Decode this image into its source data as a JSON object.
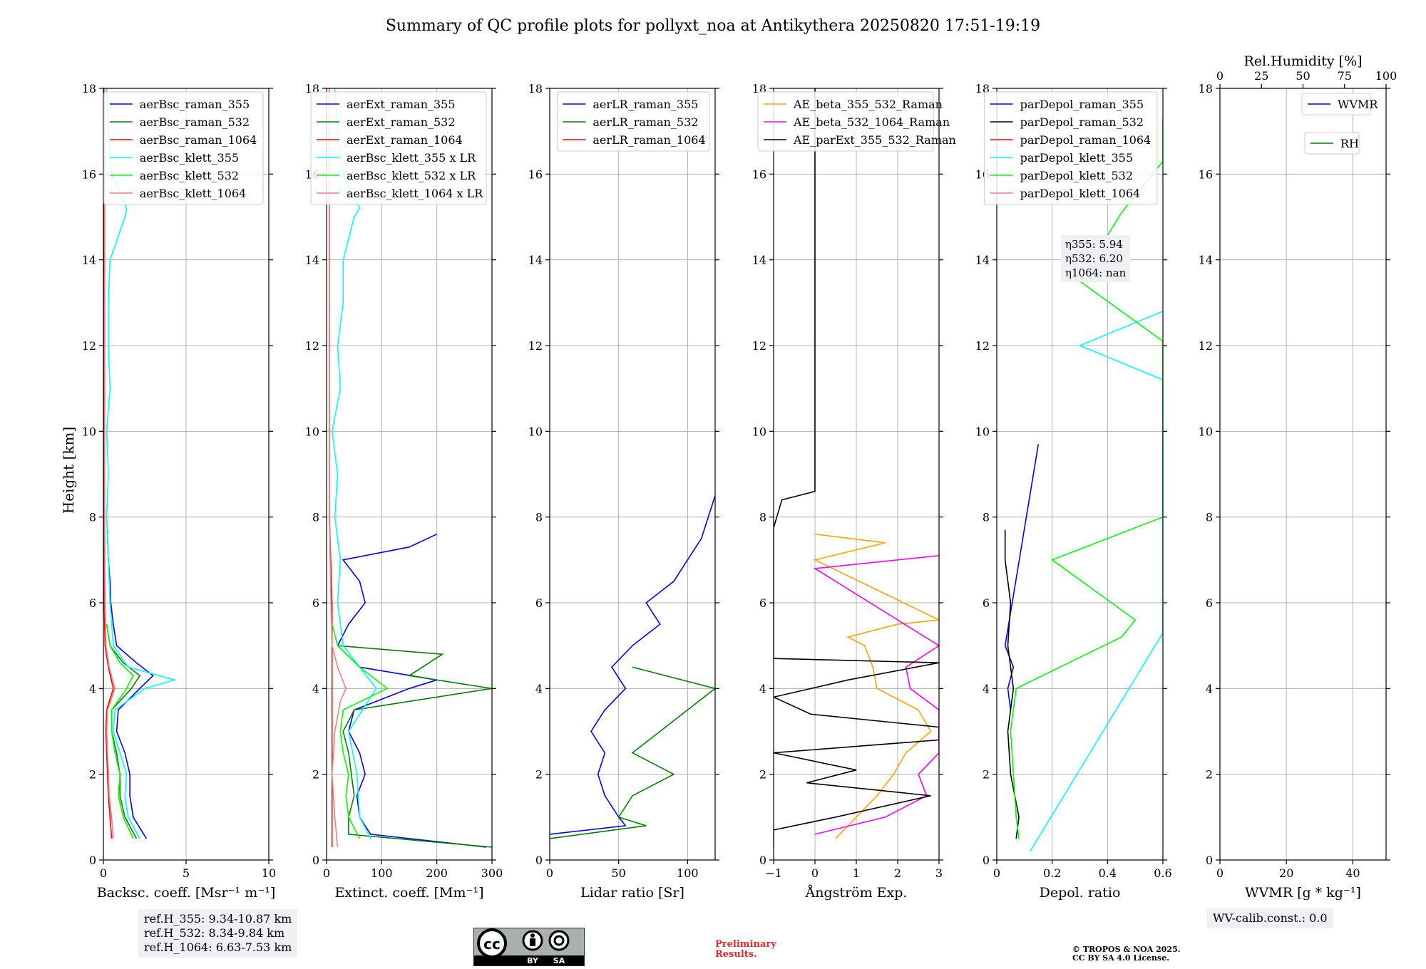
{
  "title": "Summary of QC profile plots for pollyxt_noa at Antikythera 20250820 17:51-19:19",
  "ylabel": "Height [km]",
  "chart_data": [
    {
      "type": "line",
      "xlabel": "Backsc. coeff. [Msr⁻¹ m⁻¹]",
      "xlim": [
        0,
        10
      ],
      "xticks": [
        0,
        5,
        10
      ],
      "ylim": [
        0,
        18
      ],
      "yticks": [
        0,
        2,
        4,
        6,
        8,
        10,
        12,
        14,
        16,
        18
      ],
      "legend_position": "top-right",
      "series": [
        {
          "name": "aerBsc_raman_355",
          "color": "#0000ff",
          "h": [
            0.5,
            1.0,
            1.5,
            2.0,
            2.5,
            3.0,
            3.5,
            4.0,
            4.3,
            4.6,
            5.0,
            5.5,
            6.0,
            6.5,
            7.0,
            7.5,
            7.7
          ],
          "v": [
            2.6,
            1.8,
            1.6,
            1.6,
            1.3,
            0.8,
            0.9,
            2.2,
            3.0,
            2.0,
            0.8,
            0.6,
            0.45,
            0.4,
            0.3,
            0.25,
            0.25
          ]
        },
        {
          "name": "aerBsc_raman_532",
          "color": "#008000",
          "h": [
            0.5,
            1.0,
            1.5,
            2.0,
            2.5,
            3.0,
            3.5,
            4.0,
            4.3,
            4.6,
            5.0,
            5.5
          ],
          "v": [
            2.0,
            1.3,
            1.0,
            1.0,
            0.8,
            0.5,
            0.5,
            1.7,
            2.2,
            1.2,
            0.4,
            0.2
          ]
        },
        {
          "name": "aerBsc_raman_1064",
          "color": "#ff0000",
          "h": [
            0.5,
            1.0,
            1.5,
            2.0,
            2.5,
            3.0,
            3.5,
            4.0,
            4.5,
            5.0,
            6.0,
            8.0,
            12.0,
            16.0,
            18.0
          ],
          "v": [
            0.5,
            0.4,
            0.3,
            0.25,
            0.2,
            0.15,
            0.2,
            0.6,
            0.3,
            0.1,
            0.05,
            0.05,
            0.05,
            0.05,
            0.05
          ]
        },
        {
          "name": "aerBsc_klett_355",
          "color": "#00ffff",
          "h": [
            0.5,
            1.0,
            1.5,
            2.0,
            2.5,
            3.0,
            3.5,
            4.0,
            4.2,
            4.5,
            5.0,
            6.0,
            7.0,
            8.0,
            9.0,
            10.0,
            11.0,
            12.0,
            13.0,
            14.0,
            15.0,
            15.2,
            16.0,
            17.0,
            18.0
          ],
          "v": [
            2.2,
            1.5,
            1.3,
            1.4,
            1.0,
            0.6,
            0.7,
            2.5,
            4.3,
            1.5,
            0.6,
            0.4,
            0.3,
            0.2,
            0.3,
            0.2,
            0.4,
            0.3,
            0.3,
            0.4,
            1.3,
            1.4,
            0.5,
            0.3,
            0.2
          ]
        },
        {
          "name": "aerBsc_klett_532",
          "color": "#00ff00",
          "h": [
            0.5,
            1.0,
            1.5,
            2.0,
            2.5,
            3.0,
            3.5,
            4.0,
            4.3,
            4.6,
            5.0,
            5.5
          ],
          "v": [
            1.8,
            1.2,
            0.9,
            1.0,
            0.7,
            0.5,
            0.5,
            1.4,
            1.8,
            1.0,
            0.4,
            0.2
          ]
        },
        {
          "name": "aerBsc_klett_1064",
          "color": "#f08080",
          "h": [
            0.5,
            1.0,
            1.5,
            2.0,
            2.5,
            3.0,
            3.5,
            4.0,
            4.5,
            5.0,
            6.0,
            8.0,
            12.0,
            16.0,
            18.0
          ],
          "v": [
            0.6,
            0.5,
            0.35,
            0.3,
            0.25,
            0.2,
            0.25,
            0.7,
            0.35,
            0.15,
            0.1,
            0.08,
            0.08,
            0.08,
            0.08
          ]
        }
      ],
      "annotations": [
        "ref.H_355: 9.34-10.87 km",
        "ref.H_532: 8.34-9.84 km",
        "ref.H_1064: 6.63-7.53 km"
      ]
    },
    {
      "type": "line",
      "xlabel": "Extinct. coeff. [Mm⁻¹]",
      "xlim": [
        0,
        300
      ],
      "xticks": [
        0,
        100,
        200,
        300
      ],
      "ylim": [
        0,
        18
      ],
      "yticks": [
        0,
        2,
        4,
        6,
        8,
        10,
        12,
        14,
        16,
        18
      ],
      "legend_position": "top-right",
      "series": [
        {
          "name": "aerExt_raman_355",
          "color": "#0000ff",
          "h": [
            0.3,
            0.6,
            0.8,
            1.0,
            1.5,
            2.0,
            2.5,
            3.0,
            3.5,
            4.0,
            4.2,
            4.5,
            5.0,
            5.5,
            6.0,
            6.5,
            7.0,
            7.3,
            7.6
          ],
          "v": [
            290,
            80,
            70,
            60,
            55,
            70,
            60,
            40,
            50,
            150,
            200,
            60,
            20,
            40,
            70,
            60,
            30,
            150,
            200
          ]
        },
        {
          "name": "aerExt_raman_532",
          "color": "#008000",
          "h": [
            0.3,
            0.6,
            1.0,
            1.5,
            2.0,
            2.5,
            3.0,
            3.5,
            4.0,
            4.3,
            4.8,
            5.0
          ],
          "v": [
            300,
            40,
            40,
            50,
            45,
            40,
            30,
            50,
            300,
            150,
            210,
            20
          ]
        },
        {
          "name": "aerExt_raman_1064",
          "color": "#ff0000",
          "h": [
            0.3,
            1.0,
            2.0,
            3.0,
            4.0,
            5.0,
            6.0,
            8.0,
            18.0
          ],
          "v": [
            10,
            10,
            10,
            10,
            10,
            10,
            10,
            5,
            5
          ]
        },
        {
          "name": "aerBsc_klett_355 x LR",
          "color": "#00ffff",
          "h": [
            0.5,
            1.0,
            2.0,
            3.0,
            4.0,
            5.0,
            6.0,
            7.0,
            8.0,
            9.0,
            10.0,
            11.0,
            12.0,
            13.0,
            14.0,
            15.0,
            15.2,
            16.0,
            17.0,
            18.0
          ],
          "v": [
            80,
            60,
            55,
            40,
            90,
            30,
            20,
            25,
            15,
            20,
            10,
            25,
            20,
            30,
            30,
            50,
            60,
            30,
            20,
            15
          ]
        },
        {
          "name": "aerBsc_klett_532 x LR",
          "color": "#00ff00",
          "h": [
            0.5,
            1.0,
            1.5,
            2.0,
            2.5,
            3.0,
            3.5,
            4.0,
            4.5,
            5.0,
            5.5
          ],
          "v": [
            60,
            40,
            35,
            40,
            30,
            25,
            30,
            110,
            60,
            20,
            10
          ]
        },
        {
          "name": "aerBsc_klett_1064 x LR",
          "color": "#f08080",
          "h": [
            0.3,
            1.0,
            2.0,
            3.0,
            3.7,
            4.0,
            4.5,
            5.0,
            6.0,
            8.0,
            18.0
          ],
          "v": [
            20,
            15,
            10,
            15,
            25,
            35,
            20,
            10,
            8,
            5,
            5
          ]
        }
      ]
    },
    {
      "type": "line",
      "xlabel": "Lidar ratio [Sr]",
      "xlim": [
        0,
        120
      ],
      "xticks": [
        0,
        50,
        100
      ],
      "ylim": [
        0,
        18
      ],
      "yticks": [
        0,
        2,
        4,
        6,
        8,
        10,
        12,
        14,
        16,
        18
      ],
      "legend_position": "top-right",
      "series": [
        {
          "name": "aerLR_raman_355",
          "color": "#0000ff",
          "h": [
            0.6,
            0.8,
            1.0,
            1.5,
            2.0,
            2.5,
            3.0,
            3.5,
            4.0,
            4.5,
            5.0,
            5.5,
            6.0,
            6.5,
            7.0,
            7.5,
            8.5
          ],
          "v": [
            0,
            55,
            50,
            40,
            35,
            40,
            30,
            40,
            55,
            45,
            60,
            80,
            70,
            90,
            100,
            110,
            120
          ]
        },
        {
          "name": "aerLR_raman_532",
          "color": "#008000",
          "h": [
            0.5,
            0.8,
            1.0,
            1.5,
            2.0,
            2.5,
            3.0,
            3.5,
            4.0,
            4.5
          ],
          "v": [
            0,
            70,
            50,
            60,
            90,
            60,
            80,
            100,
            120,
            60
          ]
        },
        {
          "name": "aerLR_raman_1064",
          "color": "#ff0000",
          "h": [],
          "v": []
        }
      ]
    },
    {
      "type": "line",
      "xlabel": "Ångström Exp.",
      "xlim": [
        -1,
        3
      ],
      "xticks": [
        -1,
        0,
        1,
        2,
        3
      ],
      "ylim": [
        0,
        18
      ],
      "yticks": [
        0,
        2,
        4,
        6,
        8,
        10,
        12,
        14,
        16,
        18
      ],
      "legend_position": "top-right",
      "series": [
        {
          "name": "AE_beta_355_532_Raman",
          "color": "#ffa500",
          "h": [
            0.5,
            1.0,
            1.5,
            2.0,
            2.5,
            3.0,
            3.5,
            4.0,
            4.5,
            5.0,
            5.2,
            5.5,
            5.6,
            7.0,
            7.4,
            7.6
          ],
          "v": [
            0.5,
            1.0,
            1.5,
            1.9,
            2.2,
            2.8,
            2.5,
            1.5,
            1.4,
            1.2,
            0.8,
            2.0,
            3.0,
            0.0,
            1.7,
            0.0
          ]
        },
        {
          "name": "AE_beta_532_1064_Raman",
          "color": "#ff00ff",
          "h": [
            0.6,
            1.0,
            1.5,
            2.0,
            2.5,
            3.5,
            4.0,
            4.5,
            5.0,
            6.8,
            7.1
          ],
          "v": [
            0.0,
            1.7,
            2.7,
            2.5,
            3.0,
            3.0,
            2.3,
            2.2,
            3.0,
            0.0,
            3.0
          ]
        },
        {
          "name": "AE_parExt_355_532_Raman",
          "color": "#000000",
          "h": [
            0.3,
            0.7,
            1.0,
            1.5,
            1.8,
            2.1,
            2.5,
            2.8,
            3.1,
            3.4,
            3.8,
            4.2,
            4.6,
            4.7,
            7.75,
            8.4,
            8.6,
            18.0
          ],
          "v": [
            -1,
            -1,
            0.5,
            2.8,
            -0.2,
            1.0,
            -1,
            3.0,
            3.0,
            -0.1,
            -1,
            0.8,
            3.0,
            -1,
            -1,
            -0.8,
            0.0,
            0.0
          ]
        }
      ]
    },
    {
      "type": "line",
      "xlabel": "Depol. ratio",
      "xlim": [
        0.0,
        0.6
      ],
      "xticks": [
        0.0,
        0.2,
        0.4,
        0.6
      ],
      "ylim": [
        0,
        18
      ],
      "yticks": [
        0,
        2,
        4,
        6,
        8,
        10,
        12,
        14,
        16,
        18
      ],
      "legend_position": "top-right",
      "series": [
        {
          "name": "parDepol_raman_355",
          "color": "#0000ff",
          "h": [
            3.5,
            4.0,
            4.5,
            5.0,
            9.7
          ],
          "v": [
            0.05,
            0.04,
            0.06,
            0.03,
            0.15
          ]
        },
        {
          "name": "parDepol_raman_532",
          "color": "#000000",
          "h": [
            0.5,
            1.0,
            2.0,
            3.0,
            4.0,
            5.0,
            6.0,
            7.0,
            7.7
          ],
          "v": [
            0.07,
            0.08,
            0.05,
            0.04,
            0.06,
            0.04,
            0.05,
            0.03,
            0.03
          ]
        },
        {
          "name": "parDepol_raman_1064",
          "color": "#ff0000",
          "h": [],
          "v": []
        },
        {
          "name": "parDepol_klett_355",
          "color": "#00ffff",
          "h": [
            0.2,
            5.3,
            6.3,
            7.8,
            8.9,
            9.6,
            10.2,
            11.2,
            12.0,
            12.8
          ],
          "v": [
            0.12,
            0.6,
            0.6,
            0.6,
            0.6,
            0.6,
            0.6,
            0.6,
            0.3,
            0.6
          ]
        },
        {
          "name": "parDepol_klett_532",
          "color": "#00ff00",
          "h": [
            0.5,
            1.0,
            2.0,
            3.0,
            4.0,
            5.2,
            5.6,
            7.0,
            8.0,
            9.5,
            10.3,
            12.1,
            13.5,
            15.1,
            16.3,
            17.3
          ],
          "v": [
            0.08,
            0.07,
            0.06,
            0.05,
            0.07,
            0.45,
            0.5,
            0.2,
            0.6,
            0.6,
            0.6,
            0.6,
            0.3,
            0.45,
            0.6,
            0.6
          ]
        },
        {
          "name": "parDepol_klett_1064",
          "color": "#f08080",
          "h": [],
          "v": []
        }
      ],
      "annotations": [
        "η355: 5.94",
        "η532: 6.20",
        "η1064: nan"
      ]
    },
    {
      "type": "line",
      "xlabel": "WVMR [g * kg⁻¹]",
      "xlim": [
        0,
        50
      ],
      "xticks": [
        0,
        20,
        40
      ],
      "top_xlabel": "Rel.Humidity [%]",
      "top_xlim": [
        0,
        100
      ],
      "top_xticks": [
        0,
        25,
        50,
        75,
        100
      ],
      "ylim": [
        0,
        18
      ],
      "yticks": [
        0,
        2,
        4,
        6,
        8,
        10,
        12,
        14,
        16,
        18
      ],
      "legend_position": "top-right",
      "series": [
        {
          "name": "WVMR",
          "color": "#0000ff",
          "h": [],
          "v": []
        },
        {
          "name": "RH",
          "color": "#008000",
          "h": [],
          "v": []
        }
      ],
      "annotations": [
        "WV-calib.const.: 0.0"
      ]
    }
  ],
  "footer": {
    "cc_text_cc": "cc",
    "cc_by": "BY",
    "cc_sa": "SA",
    "preliminary": [
      "Preliminary",
      "Results."
    ],
    "copyright": [
      "© TROPOS & NOA 2025.",
      "CC BY SA 4.0 License."
    ]
  }
}
